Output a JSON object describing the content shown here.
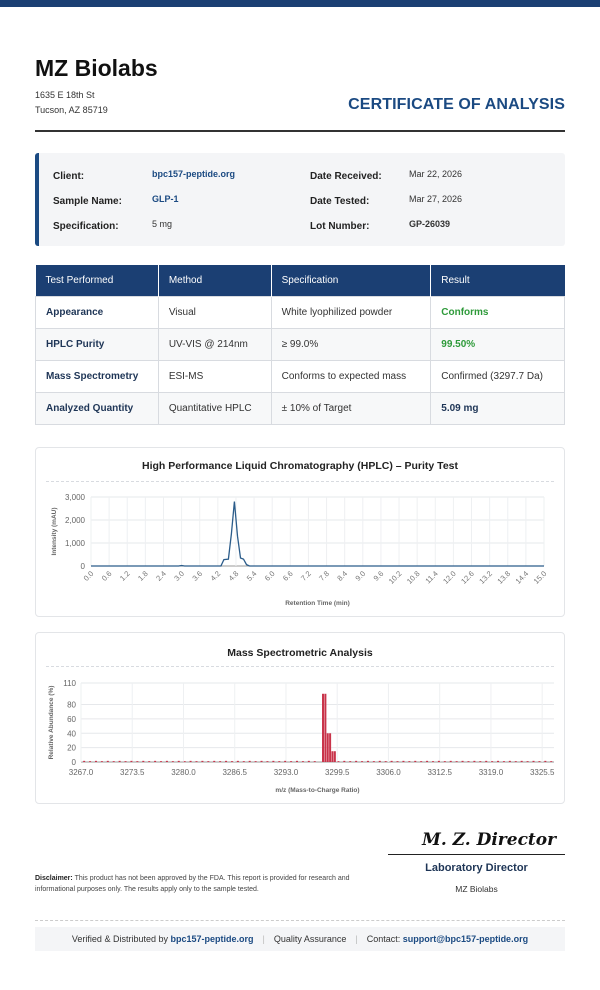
{
  "company": {
    "name": "MZ Biolabs",
    "address_line1": "1635 E 18th St",
    "address_line2": "Tucson, AZ 85719"
  },
  "document_title": "CERTIFICATE OF ANALYSIS",
  "info": {
    "client_label": "Client:",
    "client_value": "bpc157-peptide.org",
    "sample_label": "Sample Name:",
    "sample_value": "GLP-1",
    "spec_label": "Specification:",
    "spec_value": "5 mg",
    "received_label": "Date Received:",
    "received_value": "Mar 22, 2026",
    "tested_label": "Date Tested:",
    "tested_value": "Mar 27, 2026",
    "lot_label": "Lot Number:",
    "lot_value": "GP-26039"
  },
  "results_table": {
    "headers": [
      "Test Performed",
      "Method",
      "Specification",
      "Result"
    ],
    "rows": [
      [
        "Appearance",
        "Visual",
        "White lyophilized powder",
        "Conforms"
      ],
      [
        "HPLC Purity",
        "UV-VIS @ 214nm",
        "≥ 99.0%",
        "99.50%"
      ],
      [
        "Mass Spectrometry",
        "ESI-MS",
        "Conforms to expected mass",
        "Confirmed (3297.7 Da)"
      ],
      [
        "Analyzed Quantity",
        "Quantitative HPLC",
        "± 10% of Target",
        "5.09 mg"
      ]
    ]
  },
  "colors": {
    "accent": "#1b4a82",
    "header_bg": "#1b3f73",
    "pass_green": "#2e9a3a",
    "hplc_line": "#2b5c8a",
    "ms_bar": "#c9334a"
  },
  "chart_data": [
    {
      "type": "line",
      "title": "High Performance Liquid Chromatography (HPLC) – Purity Test",
      "xlabel": "Retention Time (min)",
      "ylabel": "Intensity (mAU)",
      "xlim": [
        0,
        15
      ],
      "ylim": [
        0,
        3000
      ],
      "x_ticks": [
        "0.0",
        "0.6",
        "1.2",
        "1.8",
        "2.4",
        "3.0",
        "3.6",
        "4.2",
        "4.8",
        "5.4",
        "6.0",
        "6.6",
        "7.2",
        "7.8",
        "8.4",
        "9.0",
        "9.6",
        "10.2",
        "10.8",
        "11.4",
        "12.0",
        "12.6",
        "13.2",
        "13.8",
        "14.4",
        "15.0"
      ],
      "y_ticks": [
        "0",
        "1,000",
        "2,000",
        "3,000"
      ],
      "grid": true,
      "x": [
        0,
        2.9,
        3.0,
        3.1,
        4.3,
        4.4,
        4.55,
        4.65,
        4.75,
        4.85,
        4.95,
        5.05,
        5.15,
        5.25,
        15
      ],
      "y": [
        0,
        0,
        20,
        0,
        0,
        280,
        300,
        1400,
        2800,
        1300,
        350,
        300,
        60,
        0,
        0
      ]
    },
    {
      "type": "bar",
      "title": "Mass Spectrometric Analysis",
      "xlabel": "m/z (Mass-to-Charge Ratio)",
      "ylabel": "Relative Abundance (%)",
      "xlim": [
        3267.0,
        3327.0
      ],
      "ylim": [
        0,
        110
      ],
      "x_ticks": [
        "3267.0",
        "3273.5",
        "3280.0",
        "3286.5",
        "3293.0",
        "3299.5",
        "3306.0",
        "3312.5",
        "3319.0",
        "3325.5"
      ],
      "y_ticks": [
        "0",
        "20",
        "40",
        "60",
        "80",
        "110"
      ],
      "grid": true,
      "peaks_mz": [
        3297.7,
        3298.0,
        3298.3,
        3298.6,
        3298.9,
        3299.2
      ],
      "peaks_values": [
        95,
        95,
        40,
        40,
        15,
        15
      ],
      "baseline_value": 2
    }
  ],
  "signature": {
    "text": "M. Z. Director",
    "title": "Laboratory Director",
    "org": "MZ Biolabs"
  },
  "disclaimer": {
    "label": "Disclaimer:",
    "text": "This product has not been approved by the FDA. This report is provided for research and informational purposes only. The results apply only to the sample tested."
  },
  "footer": {
    "verified_text": "Verified & Distributed by",
    "site": "bpc157-peptide.org",
    "qa": "Quality Assurance",
    "contact_label": "Contact:",
    "email": "support@bpc157-peptide.org"
  }
}
